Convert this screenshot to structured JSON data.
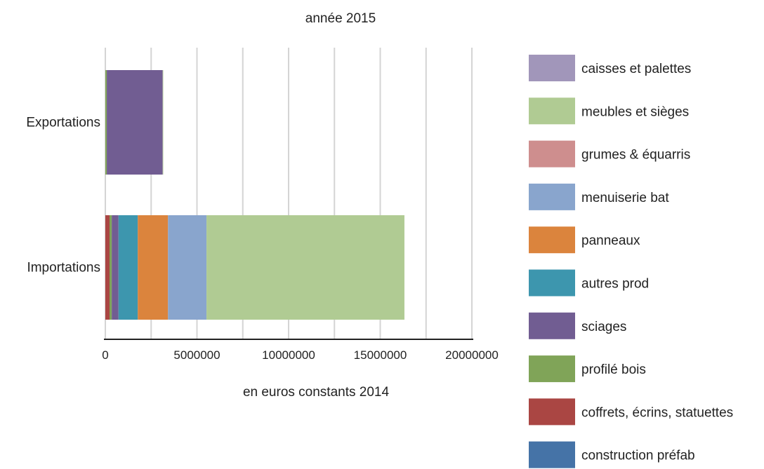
{
  "chart_data": {
    "type": "bar",
    "orientation": "horizontal",
    "stacked": true,
    "title": "année 2015",
    "xlabel": "en euros constants 2014",
    "ylabel": "",
    "xlim": [
      0,
      20000000
    ],
    "xticks": [
      0,
      5000000,
      10000000,
      15000000,
      20000000
    ],
    "xtick_labels": [
      "0",
      "5000000",
      "10000000",
      "15000000",
      "20000000"
    ],
    "grid": true,
    "legend_position": "right",
    "categories": [
      "Exportations",
      "Importations"
    ],
    "series": [
      {
        "name": "construction préfab",
        "color": "#4573a7",
        "values": [
          0,
          0
        ]
      },
      {
        "name": "coffrets, écrins, statuettes",
        "color": "#aa4643",
        "values": [
          0,
          230000
        ]
      },
      {
        "name": "profilé bois",
        "color": "#80a458",
        "values": [
          80000,
          120000
        ]
      },
      {
        "name": "sciages",
        "color": "#715d92",
        "values": [
          3050000,
          370000
        ]
      },
      {
        "name": "autres prod",
        "color": "#3d96ae",
        "values": [
          0,
          1050000
        ]
      },
      {
        "name": "panneaux",
        "color": "#db843d",
        "values": [
          0,
          1650000
        ]
      },
      {
        "name": "menuiserie bat",
        "color": "#89a5cd",
        "values": [
          0,
          2100000
        ]
      },
      {
        "name": "grumes & équarris",
        "color": "#ce8e8e",
        "values": [
          0,
          0
        ]
      },
      {
        "name": "meubles et sièges",
        "color": "#b0cb93",
        "values": [
          30000,
          10800000
        ]
      },
      {
        "name": "caisses et palettes",
        "color": "#a196ba",
        "values": [
          0,
          0
        ]
      }
    ],
    "legend_order": [
      "caisses et palettes",
      "meubles et sièges",
      "grumes & équarris",
      "menuiserie bat",
      "panneaux",
      "autres prod",
      "sciages",
      "profilé bois",
      "coffrets, écrins, statuettes",
      "construction préfab"
    ]
  }
}
